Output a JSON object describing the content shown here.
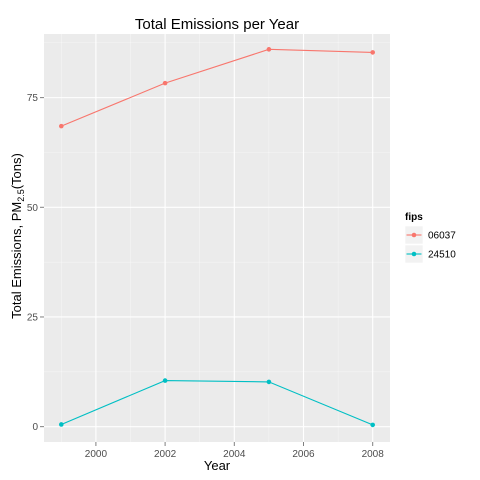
{
  "chart_data": {
    "type": "line",
    "title": "Total Emissions per Year",
    "xlabel": "Year",
    "ylabel_main": "Total Emissions, PM",
    "ylabel_sub": "2.5",
    "ylabel_tail": "(Tons)",
    "x": [
      1999,
      2002,
      2005,
      2008
    ],
    "xlim": [
      1998.5,
      2008.5
    ],
    "ylim": [
      -3.5,
      89.5
    ],
    "xticks": [
      2000,
      2002,
      2004,
      2006,
      2008
    ],
    "xtick_labels": [
      "2000",
      "2002",
      "2004",
      "2006",
      "2008"
    ],
    "yticks": [
      0,
      25,
      50,
      75
    ],
    "ytick_labels": [
      "0",
      "25",
      "50",
      "75"
    ],
    "grid": true,
    "legend_title": "fips",
    "legend_position": "right",
    "series": [
      {
        "name": "06037",
        "color": "#F8766D",
        "values": [
          68.5,
          78.3,
          86.0,
          85.3
        ]
      },
      {
        "name": "24510",
        "color": "#00BFC4",
        "values": [
          0.5,
          10.5,
          10.2,
          0.4
        ]
      }
    ],
    "panel_color": "#EBEBEB",
    "grid_color": "#FFFFFF"
  }
}
